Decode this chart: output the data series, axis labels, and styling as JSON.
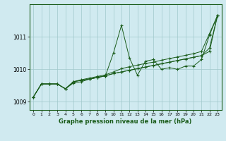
{
  "title": "Graphe pression niveau de la mer (hPa)",
  "bg_color": "#d0eaf0",
  "grid_color": "#a0c8cc",
  "line_color": "#1a5c1a",
  "marker": "+",
  "xlim": [
    -0.5,
    23.5
  ],
  "ylim": [
    1008.75,
    1012.0
  ],
  "xticks": [
    0,
    1,
    2,
    3,
    4,
    5,
    6,
    7,
    8,
    9,
    10,
    11,
    12,
    13,
    14,
    15,
    16,
    17,
    18,
    19,
    20,
    21,
    22,
    23
  ],
  "yticks": [
    1009,
    1010,
    1011
  ],
  "series": [
    [
      1009.15,
      1009.55,
      1009.55,
      1009.55,
      1009.4,
      1009.58,
      1009.62,
      1009.7,
      1009.75,
      1009.8,
      1010.5,
      1011.35,
      1010.35,
      1009.82,
      1010.25,
      1010.3,
      1010.0,
      1010.05,
      1010.0,
      1010.1,
      1010.1,
      1010.3,
      1011.05,
      1011.65
    ],
    [
      1009.15,
      1009.55,
      1009.55,
      1009.55,
      1009.4,
      1009.62,
      1009.68,
      1009.73,
      1009.78,
      1009.83,
      1009.92,
      1010.02,
      1010.08,
      1010.13,
      1010.18,
      1010.22,
      1010.28,
      1010.33,
      1010.38,
      1010.43,
      1010.48,
      1010.55,
      1011.1,
      1011.65
    ],
    [
      1009.15,
      1009.55,
      1009.55,
      1009.55,
      1009.4,
      1009.62,
      1009.66,
      1009.7,
      1009.75,
      1009.8,
      1009.87,
      1009.92,
      1009.97,
      1010.02,
      1010.07,
      1010.12,
      1010.17,
      1010.22,
      1010.27,
      1010.32,
      1010.37,
      1010.42,
      1010.65,
      1011.65
    ],
    [
      1009.15,
      1009.55,
      1009.55,
      1009.55,
      1009.4,
      1009.62,
      1009.66,
      1009.7,
      1009.75,
      1009.8,
      1009.87,
      1009.92,
      1009.97,
      1010.02,
      1010.07,
      1010.12,
      1010.17,
      1010.22,
      1010.27,
      1010.32,
      1010.37,
      1010.42,
      1010.55,
      1011.65
    ]
  ]
}
